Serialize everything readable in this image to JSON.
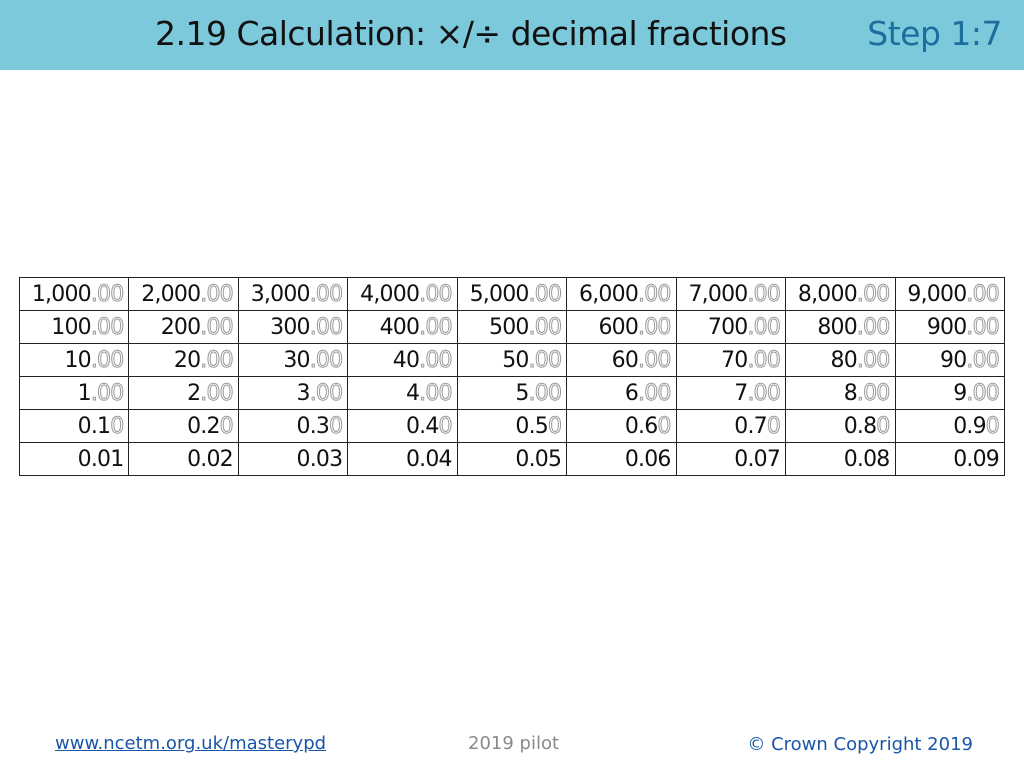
{
  "header": {
    "title": "2.19 Calculation: ×/÷ decimal fractions",
    "step": "Step 1:7"
  },
  "table": {
    "rows": [
      [
        {
          "main": "1,000",
          "ghost": ".00"
        },
        {
          "main": "2,000",
          "ghost": ".00"
        },
        {
          "main": "3,000",
          "ghost": ".00"
        },
        {
          "main": "4,000",
          "ghost": ".00"
        },
        {
          "main": "5,000",
          "ghost": ".00"
        },
        {
          "main": "6,000",
          "ghost": ".00"
        },
        {
          "main": "7,000",
          "ghost": ".00"
        },
        {
          "main": "8,000",
          "ghost": ".00"
        },
        {
          "main": "9,000",
          "ghost": ".00"
        }
      ],
      [
        {
          "main": "100",
          "ghost": ".00"
        },
        {
          "main": "200",
          "ghost": ".00"
        },
        {
          "main": "300",
          "ghost": ".00"
        },
        {
          "main": "400",
          "ghost": ".00"
        },
        {
          "main": "500",
          "ghost": ".00"
        },
        {
          "main": "600",
          "ghost": ".00"
        },
        {
          "main": "700",
          "ghost": ".00"
        },
        {
          "main": "800",
          "ghost": ".00"
        },
        {
          "main": "900",
          "ghost": ".00"
        }
      ],
      [
        {
          "main": "10",
          "ghost": ".00"
        },
        {
          "main": "20",
          "ghost": ".00"
        },
        {
          "main": "30",
          "ghost": ".00"
        },
        {
          "main": "40",
          "ghost": ".00"
        },
        {
          "main": "50",
          "ghost": ".00"
        },
        {
          "main": "60",
          "ghost": ".00"
        },
        {
          "main": "70",
          "ghost": ".00"
        },
        {
          "main": "80",
          "ghost": ".00"
        },
        {
          "main": "90",
          "ghost": ".00"
        }
      ],
      [
        {
          "main": "1",
          "ghost": ".00"
        },
        {
          "main": "2",
          "ghost": ".00"
        },
        {
          "main": "3",
          "ghost": ".00"
        },
        {
          "main": "4",
          "ghost": ".00"
        },
        {
          "main": "5",
          "ghost": ".00"
        },
        {
          "main": "6",
          "ghost": ".00"
        },
        {
          "main": "7",
          "ghost": ".00"
        },
        {
          "main": "8",
          "ghost": ".00"
        },
        {
          "main": "9",
          "ghost": ".00"
        }
      ],
      [
        {
          "main": "0.1",
          "ghost": "0"
        },
        {
          "main": "0.2",
          "ghost": "0"
        },
        {
          "main": "0.3",
          "ghost": "0"
        },
        {
          "main": "0.4",
          "ghost": "0"
        },
        {
          "main": "0.5",
          "ghost": "0"
        },
        {
          "main": "0.6",
          "ghost": "0"
        },
        {
          "main": "0.7",
          "ghost": "0"
        },
        {
          "main": "0.8",
          "ghost": "0"
        },
        {
          "main": "0.9",
          "ghost": "0"
        }
      ],
      [
        {
          "main": "0.01"
        },
        {
          "main": "0.02"
        },
        {
          "main": "0.03"
        },
        {
          "main": "0.04"
        },
        {
          "main": "0.05"
        },
        {
          "main": "0.06"
        },
        {
          "main": "0.07"
        },
        {
          "main": "0.08"
        },
        {
          "main": "0.09"
        }
      ]
    ]
  },
  "footer": {
    "link": "www.ncetm.org.uk/masterypd",
    "center": "2019 pilot",
    "copyright": "© Crown Copyright 2019"
  }
}
